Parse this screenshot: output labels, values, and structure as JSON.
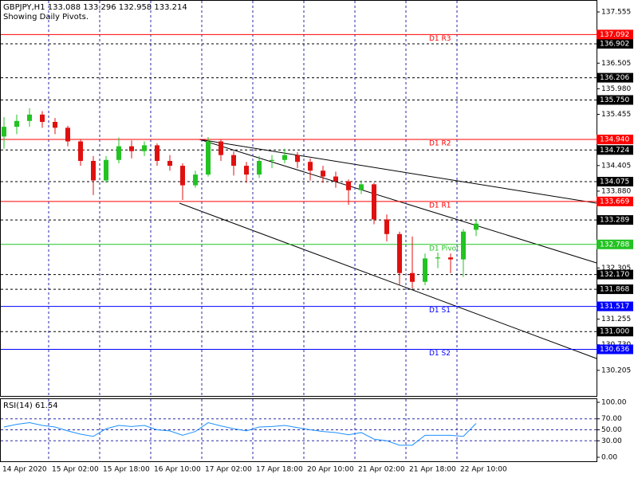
{
  "chart_data": [
    {
      "type": "candlestick",
      "title": "GBPJPY,H1  133.088 133.296 132.958 133.214",
      "subtitle": "Showing Daily Pivots.",
      "categories": [
        "14 Apr 2020",
        null,
        null,
        null,
        "15 Apr 02:00",
        null,
        null,
        null,
        "15 Apr 18:00",
        null,
        null,
        null,
        "16 Apr 10:00",
        null,
        null,
        null,
        "17 Apr 02:00",
        null,
        null,
        null,
        "17 Apr 18:00",
        null,
        null,
        null,
        "20 Apr 10:00",
        null,
        null,
        null,
        "21 Apr 02:00",
        null,
        null,
        null,
        "21 Apr 18:00",
        null,
        null,
        null,
        "22 Apr 10:00",
        null
      ],
      "open": [
        135.0,
        135.2,
        135.32,
        135.45,
        135.3,
        135.18,
        134.9,
        134.5,
        134.1,
        134.52,
        134.8,
        134.7,
        134.82,
        134.5,
        134.4,
        134.0,
        134.22,
        134.9,
        134.62,
        134.4,
        134.22,
        134.5,
        134.52,
        134.62,
        134.48,
        134.3,
        134.18,
        134.08,
        133.9,
        134.02,
        133.3,
        133.0,
        132.2,
        132.02,
        132.5,
        132.52,
        132.48,
        133.088
      ],
      "high": [
        135.4,
        135.45,
        135.58,
        135.52,
        135.38,
        135.22,
        134.95,
        134.6,
        134.6,
        134.98,
        134.92,
        134.9,
        134.86,
        134.62,
        134.45,
        134.3,
        134.99,
        134.95,
        134.7,
        134.48,
        134.6,
        134.62,
        134.75,
        134.68,
        134.55,
        134.4,
        134.28,
        134.12,
        134.1,
        134.05,
        133.4,
        133.05,
        132.95,
        132.6,
        132.62,
        132.6,
        133.1,
        133.296
      ],
      "low": [
        134.75,
        135.05,
        135.2,
        135.18,
        135.05,
        134.8,
        134.4,
        133.8,
        134.05,
        134.45,
        134.55,
        134.6,
        134.4,
        134.3,
        133.7,
        133.95,
        134.18,
        134.5,
        134.2,
        134.05,
        134.15,
        134.35,
        134.45,
        134.35,
        134.1,
        134.05,
        133.95,
        133.6,
        133.82,
        133.2,
        132.85,
        131.95,
        131.88,
        131.95,
        132.3,
        132.2,
        132.12,
        132.958
      ],
      "close": [
        135.2,
        135.32,
        135.45,
        135.3,
        135.18,
        134.9,
        134.5,
        134.1,
        134.52,
        134.8,
        134.7,
        134.82,
        134.5,
        134.4,
        134.0,
        134.22,
        134.9,
        134.62,
        134.4,
        134.22,
        134.5,
        134.52,
        134.62,
        134.48,
        134.3,
        134.18,
        134.08,
        133.9,
        134.02,
        133.3,
        133.0,
        132.2,
        132.02,
        132.5,
        132.52,
        132.48,
        133.05,
        133.214
      ],
      "up_color": "#22c322",
      "down_color": "#e01010",
      "ylim": [
        129.68,
        137.8
      ],
      "yticks": [
        137.555,
        136.505,
        {
          "value": 135.98,
          "label": "135.980"
        },
        135.455,
        134.405,
        {
          "value": 133.88,
          "label": "133.880"
        },
        132.305,
        131.255,
        {
          "value": 130.73,
          "label": "130.730"
        },
        130.205
      ],
      "grid_levels": [
        136.902,
        136.206,
        {
          "value": 135.75,
          "label": "135.750"
        },
        134.724,
        134.075,
        133.289,
        {
          "value": 132.17,
          "label": "132.170"
        },
        131.868,
        {
          "value": 131,
          "label": "131.000"
        }
      ],
      "pivots": [
        {
          "name": "D1 R3",
          "value": 137.092,
          "label": "137.092",
          "color": "#ff0000"
        },
        {
          "name": "D1 R2",
          "value": 134.94,
          "label": "134.940",
          "color": "#ff0000"
        },
        {
          "name": "D1 R1",
          "value": 133.669,
          "label": "133.669",
          "color": "#ff0000"
        },
        {
          "name": "D1 Pivot",
          "value": 132.788,
          "label": "132.788",
          "color": "#22c322"
        },
        {
          "name": "D1 S1",
          "value": 131.517,
          "label": "131.517",
          "color": "#0000ff"
        },
        {
          "name": "D1 S2",
          "value": 130.636,
          "label": "130.636",
          "color": "#0000ff"
        }
      ]
    },
    {
      "type": "line",
      "title": "RSI(14) 61.54",
      "values": [
        55,
        60,
        63,
        58,
        55,
        48,
        42,
        38,
        52,
        58,
        56,
        58,
        50,
        48,
        40,
        47,
        63,
        57,
        52,
        48,
        55,
        56,
        58,
        54,
        50,
        47,
        45,
        41,
        45,
        33,
        30,
        22,
        22,
        40,
        40,
        40,
        38,
        61.54
      ],
      "color": "#1e90ff",
      "ylim": [
        0,
        100
      ],
      "yticks": [
        {
          "value": 100,
          "label": "100.00"
        },
        {
          "value": 70,
          "label": "70.00"
        },
        {
          "value": 50,
          "label": "50.00"
        },
        {
          "value": 30,
          "label": "30.00"
        },
        {
          "value": 0,
          "label": "0.00"
        }
      ]
    }
  ]
}
